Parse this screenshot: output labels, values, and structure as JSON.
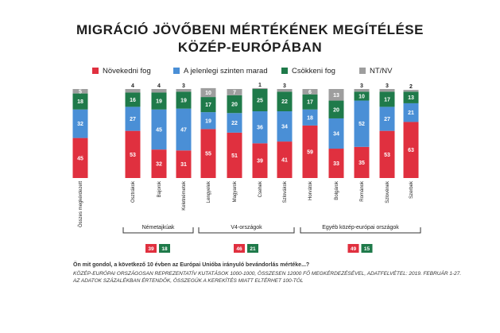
{
  "title_line1": "MIGRÁCIÓ JÖVŐBENI MÉRTÉKÉNEK MEGÍTÉLÉSE",
  "title_line2": "KÖZÉP-EURÓPÁBAN",
  "legend": [
    {
      "label": "Növekedni fog",
      "color": "#e0303f"
    },
    {
      "label": "A jelenlegi szinten marad",
      "color": "#4a8fd6"
    },
    {
      "label": "Csökkeni fog",
      "color": "#1f7a4a"
    },
    {
      "label": "NT/NV",
      "color": "#9e9e9e"
    }
  ],
  "chart_data": {
    "type": "bar",
    "stacked": true,
    "categories": [
      "Összes megkérdezett",
      "Osztrákok",
      "Bajorok",
      "Keletnémetek",
      "Lengyelek",
      "Magyarok",
      "Csehek",
      "Szlovákok",
      "Horvátok",
      "Bolgárok",
      "Románok",
      "Szlovének",
      "Szerbek"
    ],
    "series": [
      {
        "name": "Növekedni fog",
        "color": "#e0303f",
        "values": [
          45,
          53,
          32,
          31,
          55,
          51,
          39,
          41,
          59,
          33,
          35,
          53,
          63
        ]
      },
      {
        "name": "A jelenlegi szinten marad",
        "color": "#4a8fd6",
        "values": [
          32,
          27,
          45,
          47,
          19,
          22,
          36,
          34,
          18,
          34,
          52,
          27,
          21
        ]
      },
      {
        "name": "Csökkeni fog",
        "color": "#1f7a4a",
        "values": [
          18,
          16,
          19,
          19,
          17,
          20,
          25,
          22,
          17,
          20,
          10,
          17,
          13
        ]
      },
      {
        "name": "NT/NV",
        "color": "#9e9e9e",
        "values": [
          5,
          4,
          4,
          3,
          10,
          7,
          1,
          3,
          6,
          13,
          3,
          3,
          2
        ]
      }
    ],
    "groups": [
      {
        "label": "Németajkúak",
        "from": 1,
        "to": 3,
        "growth": 39,
        "decline": 18
      },
      {
        "label": "V4-országok",
        "from": 4,
        "to": 7,
        "growth": 46,
        "decline": 21
      },
      {
        "label": "Egyéb közép-európai országok",
        "from": 8,
        "to": 12,
        "growth": 49,
        "decline": 15
      }
    ]
  },
  "question": "Ön mit gondol, a következő 10 évben az Európai Unióba irányuló bevándorlás mértéke...?",
  "source_line1": "KÖZÉP-EURÓPAI ORSZÁGOSAN REPREZENTATÍV KUTATÁSOK 1000-1000, ÖSSZESEN 12000 FŐ MEGKÉRDEZÉSÉVEL, ADATFELVÉTEL: 2019. FEBRUÁR 1-27.",
  "source_line2": "AZ ADATOK SZÁZALÉKBAN ÉRTENDŐK, ÖSSZEGÜK A KEREKÍTÉS MIATT ELTÉRHET 100-TÓL"
}
